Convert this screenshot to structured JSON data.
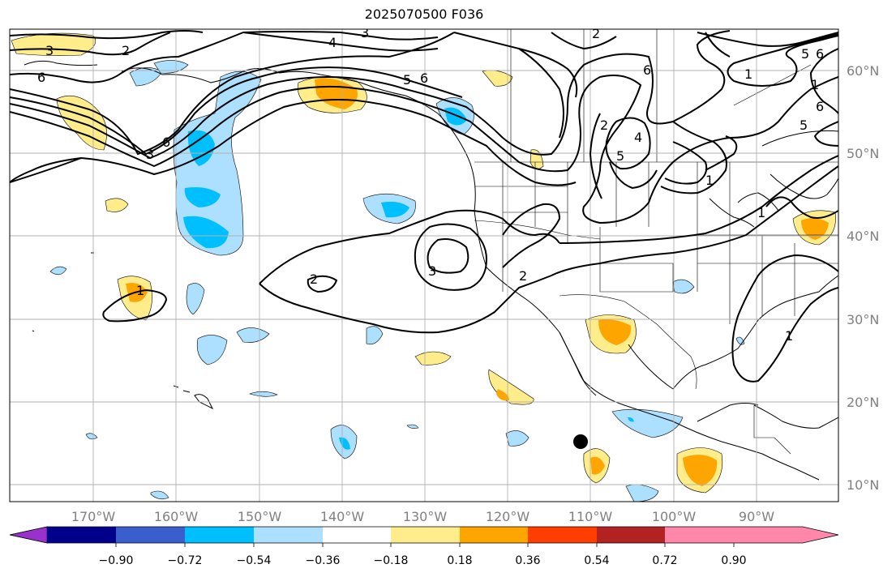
{
  "title": "2025070500 F036",
  "map": {
    "longitude_labels": [
      "170°W",
      "160°W",
      "150°W",
      "140°W",
      "130°W",
      "120°W",
      "110°W",
      "100°W",
      "90°W"
    ],
    "latitude_labels": [
      "60°N",
      "50°N",
      "40°N",
      "30°N",
      "20°N",
      "10°N"
    ],
    "contour_labels": [
      "3",
      "2",
      "6",
      "3",
      "6",
      "4",
      "3",
      "2",
      "5",
      "6",
      "6",
      "1",
      "5",
      "6",
      "2",
      "4",
      "5",
      "6",
      "5",
      "1",
      "1",
      "1",
      "2",
      "3",
      "2",
      "1",
      "1"
    ],
    "marker": "black-dot"
  },
  "colorbar": {
    "tick_labels": [
      "−0.90",
      "−0.72",
      "−0.54",
      "−0.36",
      "−0.18",
      "0.18",
      "0.36",
      "0.54",
      "0.72",
      "0.90"
    ],
    "colors": [
      "#9932CC",
      "#00008B",
      "#3A5FCD",
      "#00BFFF",
      "#ADDFFF",
      "#FFFFFF",
      "#FFEC8B",
      "#FFA500",
      "#FF3E00",
      "#B22222",
      "#FF88AA"
    ]
  }
}
